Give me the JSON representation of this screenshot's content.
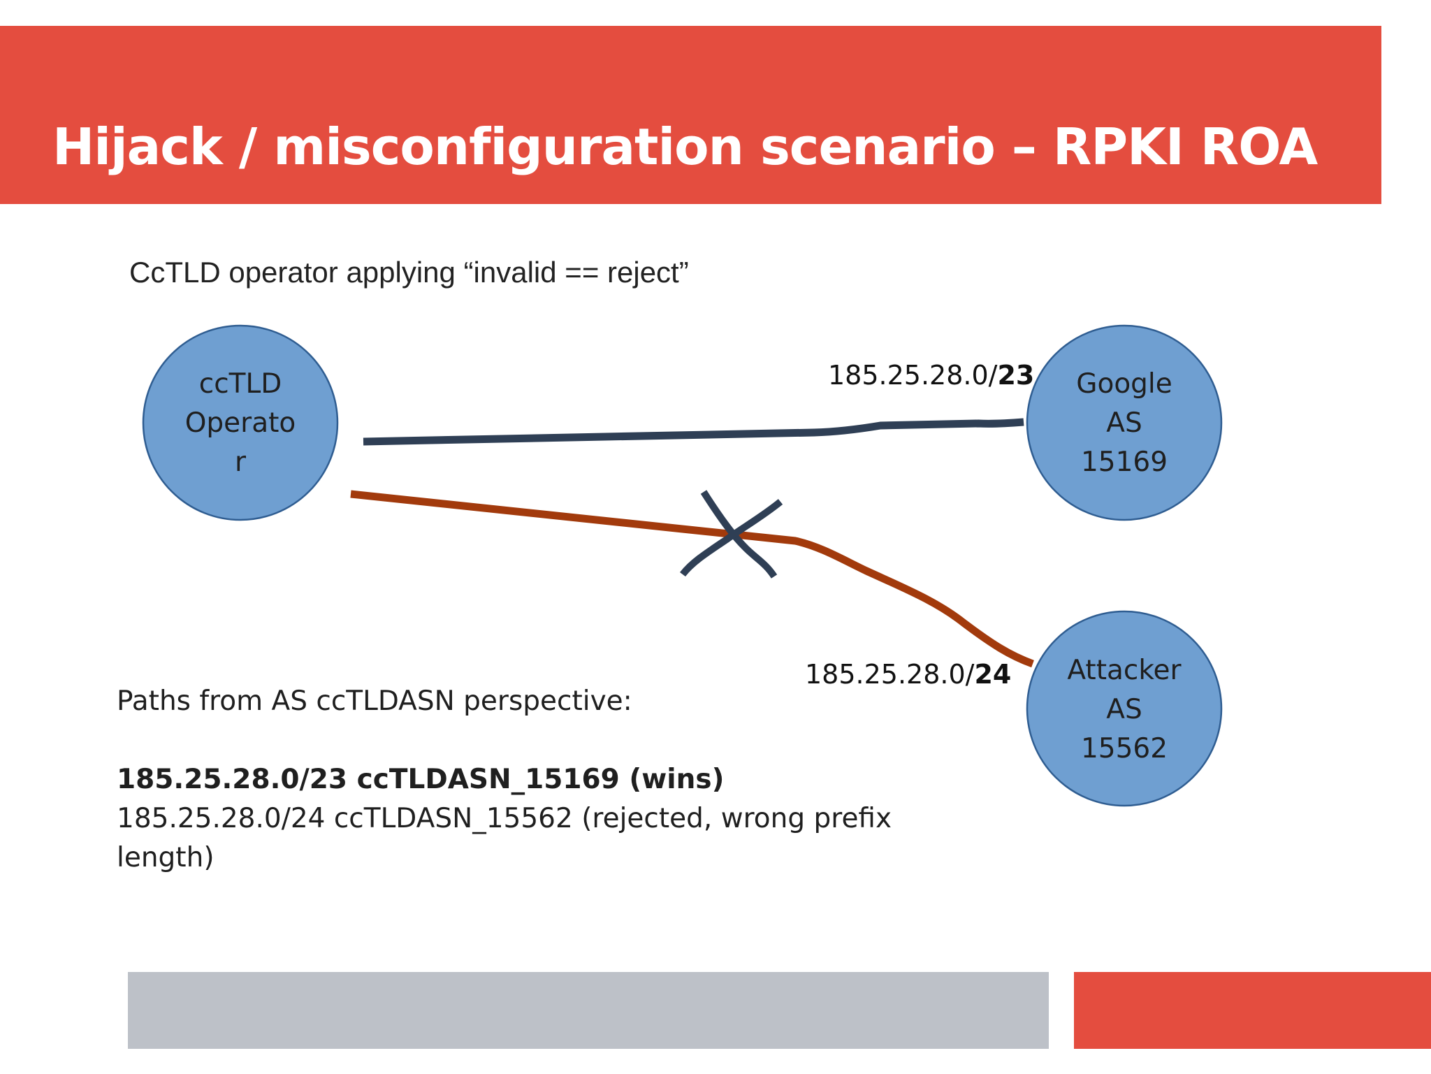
{
  "slide": {
    "title": "Hijack / misconfiguration scenario – RPKI ROA",
    "subtitle": "CcTLD operator applying “invalid == reject”"
  },
  "diagram": {
    "nodes": {
      "operator": {
        "lines": [
          "ccTLD",
          "Operato",
          "r"
        ]
      },
      "google": {
        "lines": [
          "Google",
          "AS",
          "15169"
        ]
      },
      "attacker": {
        "lines": [
          "Attacker",
          "AS",
          "15562"
        ]
      }
    },
    "edges": {
      "google": {
        "prefix": "185.25.28.0/",
        "length": "23",
        "status": "accepted"
      },
      "attacker": {
        "prefix": "185.25.28.0/",
        "length": "24",
        "status": "rejected"
      }
    },
    "colors": {
      "node_fill": "#6f9fd1",
      "node_stroke": "#2f5d91",
      "accepted_path": "#2f3f55",
      "rejected_path": "#a23a0c",
      "reject_mark": "#2f3f55"
    }
  },
  "paths": {
    "heading": "Paths from AS ccTLDASN perspective:",
    "winner": "185.25.28.0/23 ccTLDASN_15169 (wins)",
    "rejected": "185.25.28.0/24 ccTLDASN_15562 (rejected, wrong prefix length)"
  },
  "theme": {
    "accent": "#e44d3f",
    "footer_grey": "#bdc1c8"
  }
}
